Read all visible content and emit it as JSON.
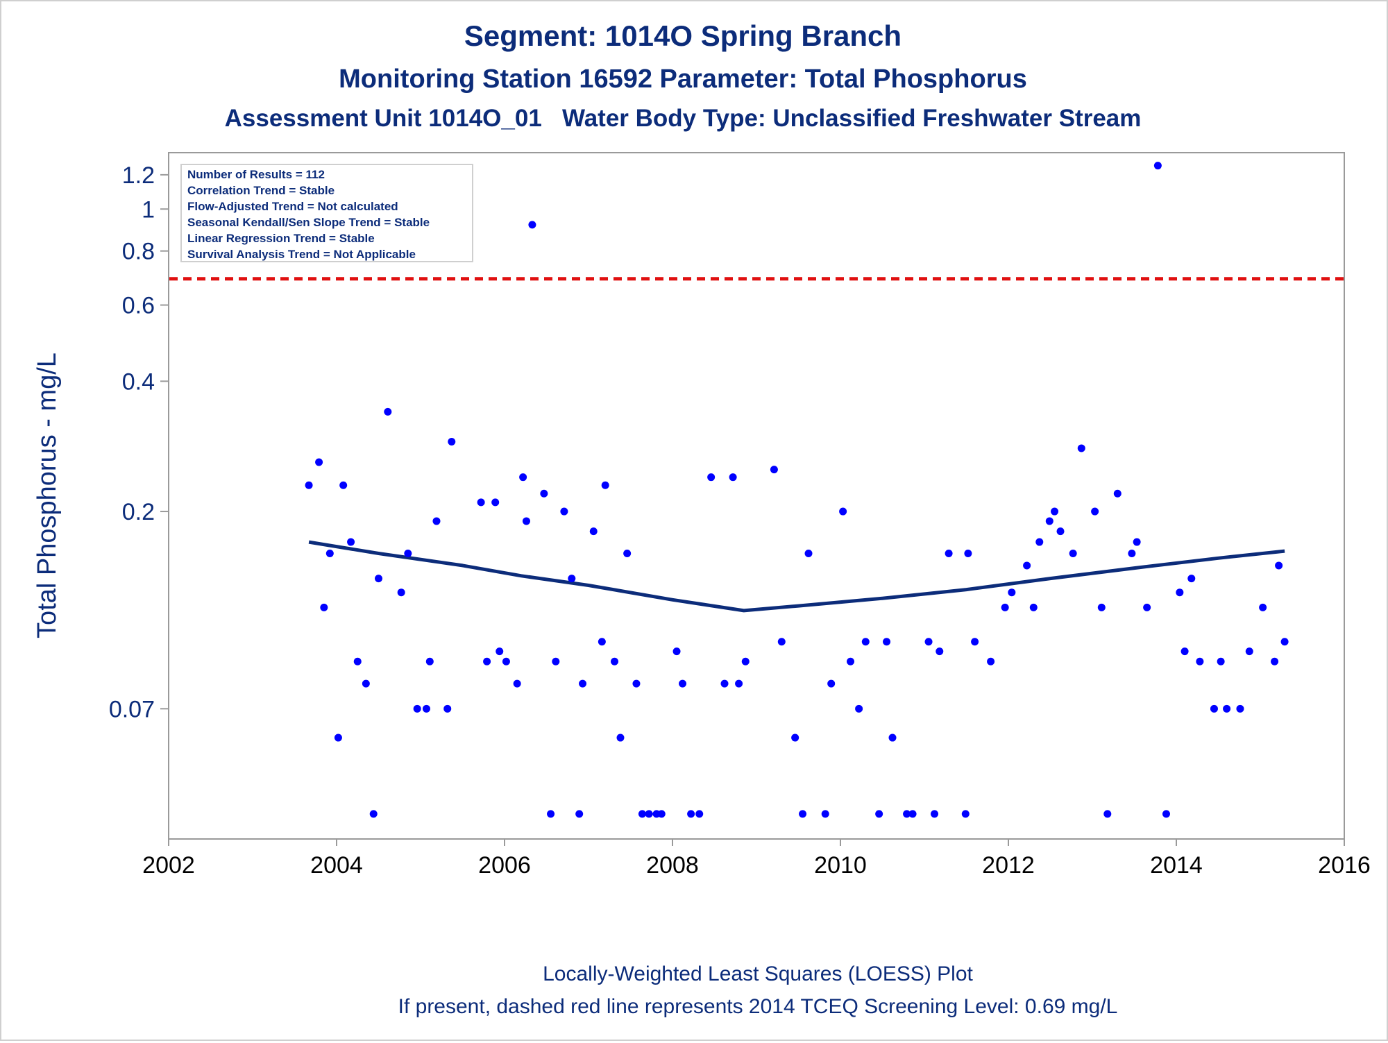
{
  "chart_data": {
    "type": "scatter",
    "title": "Segment: 1014O  Spring Branch",
    "subtitle": "Monitoring Station 16592 Parameter: Total Phosphorus",
    "subtitle2": "Assessment Unit 1014O_01   Water Body Type: Unclassified Freshwater Stream",
    "ylabel": "Total Phosphorus - mg/L",
    "footnote1": "Locally-Weighted Least Squares (LOESS) Plot",
    "footnote2": "If present, dashed red line represents 2014 TCEQ Screening Level: 0.69 mg/L",
    "y_scale": "log",
    "xlim": [
      2002,
      2016
    ],
    "ylim": [
      0.035,
      1.35
    ],
    "x_ticks": [
      2002,
      2004,
      2006,
      2008,
      2010,
      2012,
      2014,
      2016
    ],
    "x_tick_labels": [
      "2002",
      "2004",
      "2006",
      "2008",
      "2010",
      "2012",
      "2014",
      "2016"
    ],
    "y_ticks": [
      0.07,
      0.2,
      0.4,
      0.6,
      0.8,
      1,
      1.2
    ],
    "y_tick_labels": [
      "0.07",
      "0.2",
      "0.4",
      "0.6",
      "0.8",
      "1",
      "1.2"
    ],
    "screening_level": 0.69,
    "stats_box": [
      "Number of Results = 112",
      "Correlation Trend = Stable",
      "Flow-Adjusted Trend = Not calculated",
      "Seasonal Kendall/Sen Slope Trend = Stable",
      "Linear Regression Trend = Stable",
      "Survival Analysis Trend = Not Applicable"
    ],
    "colors": {
      "title": "#0c2c7a",
      "points": "#0000ff",
      "loess": "#0c2c7a",
      "screening": "#e01010",
      "axis": "#9a9a9a",
      "tick_text": "#000000"
    },
    "series": [
      {
        "type": "scatter",
        "points": [
          [
            2003.67,
            0.23
          ],
          [
            2003.79,
            0.26
          ],
          [
            2003.85,
            0.12
          ],
          [
            2003.92,
            0.16
          ],
          [
            2004.02,
            0.06
          ],
          [
            2004.08,
            0.23
          ],
          [
            2004.17,
            0.17
          ],
          [
            2004.25,
            0.09
          ],
          [
            2004.35,
            0.08
          ],
          [
            2004.44,
            0.04
          ],
          [
            2004.5,
            0.14
          ],
          [
            2004.61,
            0.34
          ],
          [
            2004.77,
            0.13
          ],
          [
            2004.85,
            0.16
          ],
          [
            2004.96,
            0.07
          ],
          [
            2005.07,
            0.07
          ],
          [
            2005.11,
            0.09
          ],
          [
            2005.19,
            0.19
          ],
          [
            2005.32,
            0.07
          ],
          [
            2005.37,
            0.29
          ],
          [
            2005.72,
            0.21
          ],
          [
            2005.79,
            0.09
          ],
          [
            2005.89,
            0.21
          ],
          [
            2005.94,
            0.095
          ],
          [
            2006.02,
            0.09
          ],
          [
            2006.15,
            0.08
          ],
          [
            2006.22,
            0.24
          ],
          [
            2006.26,
            0.19
          ],
          [
            2006.33,
            0.92
          ],
          [
            2006.47,
            0.22
          ],
          [
            2006.55,
            0.04
          ],
          [
            2006.61,
            0.09
          ],
          [
            2006.71,
            0.2
          ],
          [
            2006.8,
            0.14
          ],
          [
            2006.89,
            0.04
          ],
          [
            2006.93,
            0.08
          ],
          [
            2007.06,
            0.18
          ],
          [
            2007.16,
            0.1
          ],
          [
            2007.2,
            0.23
          ],
          [
            2007.31,
            0.09
          ],
          [
            2007.38,
            0.06
          ],
          [
            2007.46,
            0.16
          ],
          [
            2007.57,
            0.08
          ],
          [
            2007.64,
            0.04
          ],
          [
            2007.72,
            0.04
          ],
          [
            2007.81,
            0.04
          ],
          [
            2007.87,
            0.04
          ],
          [
            2008.05,
            0.095
          ],
          [
            2008.12,
            0.08
          ],
          [
            2008.22,
            0.04
          ],
          [
            2008.32,
            0.04
          ],
          [
            2008.46,
            0.24
          ],
          [
            2008.62,
            0.08
          ],
          [
            2008.72,
            0.24
          ],
          [
            2008.79,
            0.08
          ],
          [
            2008.87,
            0.09
          ],
          [
            2009.21,
            0.25
          ],
          [
            2009.3,
            0.1
          ],
          [
            2009.46,
            0.06
          ],
          [
            2009.55,
            0.04
          ],
          [
            2009.62,
            0.16
          ],
          [
            2009.82,
            0.04
          ],
          [
            2009.89,
            0.08
          ],
          [
            2010.03,
            0.2
          ],
          [
            2010.12,
            0.09
          ],
          [
            2010.22,
            0.07
          ],
          [
            2010.3,
            0.1
          ],
          [
            2010.46,
            0.04
          ],
          [
            2010.55,
            0.1
          ],
          [
            2010.62,
            0.06
          ],
          [
            2010.79,
            0.04
          ],
          [
            2010.86,
            0.04
          ],
          [
            2011.05,
            0.1
          ],
          [
            2011.12,
            0.04
          ],
          [
            2011.18,
            0.095
          ],
          [
            2011.29,
            0.16
          ],
          [
            2011.49,
            0.04
          ],
          [
            2011.52,
            0.16
          ],
          [
            2011.6,
            0.1
          ],
          [
            2011.79,
            0.09
          ],
          [
            2011.96,
            0.12
          ],
          [
            2012.04,
            0.13
          ],
          [
            2012.22,
            0.15
          ],
          [
            2012.3,
            0.12
          ],
          [
            2012.37,
            0.17
          ],
          [
            2012.49,
            0.19
          ],
          [
            2012.55,
            0.2
          ],
          [
            2012.62,
            0.18
          ],
          [
            2012.77,
            0.16
          ],
          [
            2012.87,
            0.28
          ],
          [
            2013.03,
            0.2
          ],
          [
            2013.11,
            0.12
          ],
          [
            2013.18,
            0.04
          ],
          [
            2013.3,
            0.22
          ],
          [
            2013.47,
            0.16
          ],
          [
            2013.53,
            0.17
          ],
          [
            2013.65,
            0.12
          ],
          [
            2013.78,
            1.26
          ],
          [
            2013.88,
            0.04
          ],
          [
            2014.04,
            0.13
          ],
          [
            2014.1,
            0.095
          ],
          [
            2014.18,
            0.14
          ],
          [
            2014.28,
            0.09
          ],
          [
            2014.45,
            0.07
          ],
          [
            2014.53,
            0.09
          ],
          [
            2014.6,
            0.07
          ],
          [
            2014.76,
            0.07
          ],
          [
            2014.87,
            0.095
          ],
          [
            2015.03,
            0.12
          ],
          [
            2015.17,
            0.09
          ],
          [
            2015.22,
            0.15
          ],
          [
            2015.29,
            0.1
          ]
        ]
      },
      {
        "type": "line",
        "points": [
          [
            2003.67,
            0.17
          ],
          [
            2004.5,
            0.16
          ],
          [
            2005.5,
            0.15
          ],
          [
            2006.2,
            0.142
          ],
          [
            2007.0,
            0.135
          ],
          [
            2008.0,
            0.125
          ],
          [
            2008.85,
            0.118
          ],
          [
            2009.5,
            0.121
          ],
          [
            2010.5,
            0.126
          ],
          [
            2011.5,
            0.132
          ],
          [
            2012.5,
            0.14
          ],
          [
            2013.5,
            0.148
          ],
          [
            2014.5,
            0.156
          ],
          [
            2015.29,
            0.162
          ]
        ]
      }
    ]
  }
}
